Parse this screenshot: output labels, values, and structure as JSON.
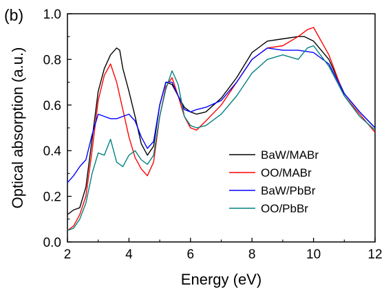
{
  "chart_data": {
    "type": "line",
    "panel_label": "(b)",
    "xlabel": "Energy (eV)",
    "ylabel": "Optical absorption (a.u.)",
    "xlim": [
      2,
      12
    ],
    "ylim": [
      0.0,
      1.0
    ],
    "xticks": [
      2,
      4,
      6,
      8,
      10,
      12
    ],
    "yticks": [
      "0.0",
      "0.2",
      "0.4",
      "0.6",
      "0.8",
      "1.0"
    ],
    "legend_position": "lower-right",
    "grid": false,
    "series": [
      {
        "name": "BaW/MABr",
        "color": "#000000",
        "x": [
          2.0,
          2.2,
          2.4,
          2.6,
          2.8,
          3.0,
          3.2,
          3.4,
          3.6,
          3.7,
          3.8,
          4.0,
          4.2,
          4.4,
          4.6,
          4.8,
          5.0,
          5.2,
          5.4,
          5.6,
          5.8,
          6.0,
          6.2,
          6.5,
          7.0,
          7.5,
          8.0,
          8.5,
          9.0,
          9.5,
          9.7,
          10.0,
          10.5,
          11.0,
          11.5,
          12.0
        ],
        "y": [
          0.12,
          0.14,
          0.15,
          0.24,
          0.45,
          0.66,
          0.76,
          0.82,
          0.85,
          0.84,
          0.76,
          0.66,
          0.55,
          0.43,
          0.38,
          0.42,
          0.6,
          0.7,
          0.69,
          0.64,
          0.59,
          0.57,
          0.56,
          0.57,
          0.63,
          0.72,
          0.83,
          0.88,
          0.89,
          0.9,
          0.9,
          0.88,
          0.8,
          0.65,
          0.57,
          0.5
        ]
      },
      {
        "name": "OO/MABr",
        "color": "#ff0000",
        "x": [
          2.0,
          2.2,
          2.4,
          2.6,
          2.8,
          3.0,
          3.2,
          3.4,
          3.6,
          3.8,
          4.0,
          4.2,
          4.4,
          4.6,
          4.8,
          5.0,
          5.2,
          5.4,
          5.6,
          5.8,
          6.0,
          6.2,
          6.5,
          7.0,
          7.5,
          8.0,
          8.5,
          9.0,
          9.5,
          9.8,
          10.0,
          10.5,
          11.0,
          11.5,
          12.0
        ],
        "y": [
          0.05,
          0.07,
          0.12,
          0.2,
          0.4,
          0.62,
          0.73,
          0.78,
          0.7,
          0.58,
          0.46,
          0.37,
          0.32,
          0.29,
          0.35,
          0.55,
          0.68,
          0.72,
          0.64,
          0.55,
          0.5,
          0.49,
          0.53,
          0.6,
          0.7,
          0.8,
          0.85,
          0.86,
          0.9,
          0.93,
          0.94,
          0.82,
          0.64,
          0.56,
          0.48
        ]
      },
      {
        "name": "BaW/PbBr",
        "color": "#0000ff",
        "x": [
          2.0,
          2.2,
          2.4,
          2.6,
          2.8,
          3.0,
          3.2,
          3.4,
          3.6,
          3.8,
          4.0,
          4.2,
          4.4,
          4.6,
          4.8,
          5.0,
          5.2,
          5.4,
          5.6,
          5.8,
          6.0,
          6.2,
          6.5,
          7.0,
          7.5,
          8.0,
          8.5,
          9.0,
          9.5,
          10.0,
          10.5,
          11.0,
          11.5,
          12.0
        ],
        "y": [
          0.26,
          0.29,
          0.33,
          0.36,
          0.47,
          0.56,
          0.55,
          0.54,
          0.54,
          0.55,
          0.56,
          0.53,
          0.46,
          0.41,
          0.44,
          0.6,
          0.7,
          0.7,
          0.64,
          0.58,
          0.57,
          0.58,
          0.59,
          0.62,
          0.7,
          0.8,
          0.85,
          0.84,
          0.84,
          0.83,
          0.78,
          0.65,
          0.57,
          0.5
        ]
      },
      {
        "name": "OO/PbBr",
        "color": "#00807f",
        "x": [
          2.0,
          2.2,
          2.4,
          2.6,
          2.8,
          3.0,
          3.2,
          3.4,
          3.6,
          3.8,
          4.0,
          4.2,
          4.4,
          4.6,
          4.8,
          5.0,
          5.2,
          5.4,
          5.6,
          5.8,
          6.0,
          6.2,
          6.5,
          7.0,
          7.5,
          8.0,
          8.5,
          9.0,
          9.5,
          9.8,
          10.0,
          10.5,
          11.0,
          11.5,
          12.0
        ],
        "y": [
          0.05,
          0.06,
          0.1,
          0.17,
          0.3,
          0.39,
          0.38,
          0.45,
          0.35,
          0.33,
          0.38,
          0.4,
          0.36,
          0.34,
          0.38,
          0.55,
          0.67,
          0.75,
          0.69,
          0.55,
          0.51,
          0.5,
          0.51,
          0.56,
          0.64,
          0.74,
          0.8,
          0.82,
          0.8,
          0.85,
          0.86,
          0.77,
          0.64,
          0.55,
          0.49
        ]
      }
    ]
  }
}
